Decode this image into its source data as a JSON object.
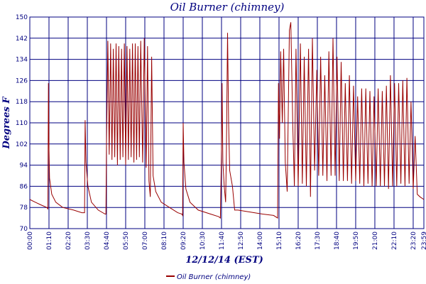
{
  "chart_data": {
    "type": "line",
    "title": "Oil Burner (chimney)",
    "xlabel": "12/12/14 (EST)",
    "ylabel": "Degrees F",
    "ylim": [
      70,
      150
    ],
    "yticks": [
      "70",
      "78",
      "86",
      "94",
      "102",
      "110",
      "118",
      "126",
      "134",
      "142",
      "150"
    ],
    "xlim": [
      "00:00",
      "23:59"
    ],
    "xticks": [
      "00:00",
      "01:10",
      "02:20",
      "03:30",
      "04:40",
      "05:50",
      "07:00",
      "08:10",
      "09:20",
      "10:30",
      "11:40",
      "12:50",
      "14:00",
      "15:10",
      "16:20",
      "17:30",
      "18:40",
      "19:50",
      "21:00",
      "22:10",
      "23:20",
      "23:59"
    ],
    "grid": true,
    "legend_position": "bottom",
    "colors": {
      "series": "#990000",
      "grid": "#000080",
      "text": "#000080"
    },
    "series": [
      {
        "name": "Oil Burner (chimney)",
        "points": [
          [
            "00:00",
            81
          ],
          [
            "00:20",
            80
          ],
          [
            "00:40",
            79
          ],
          [
            "01:02",
            78
          ],
          [
            "01:06",
            77.5
          ],
          [
            "01:08",
            125
          ],
          [
            "01:10",
            100
          ],
          [
            "01:12",
            89
          ],
          [
            "01:20",
            83
          ],
          [
            "01:35",
            80
          ],
          [
            "02:00",
            78
          ],
          [
            "02:40",
            77
          ],
          [
            "03:10",
            76
          ],
          [
            "03:20",
            76
          ],
          [
            "03:22",
            111
          ],
          [
            "03:25",
            95
          ],
          [
            "03:32",
            86
          ],
          [
            "03:45",
            80
          ],
          [
            "04:10",
            77
          ],
          [
            "04:35",
            75.5
          ],
          [
            "04:38",
            75.5
          ],
          [
            "04:40",
            102
          ],
          [
            "04:45",
            141
          ],
          [
            "04:50",
            98
          ],
          [
            "04:55",
            140
          ],
          [
            "05:00",
            96
          ],
          [
            "05:05",
            138
          ],
          [
            "05:10",
            97
          ],
          [
            "05:15",
            140
          ],
          [
            "05:20",
            94
          ],
          [
            "05:25",
            139
          ],
          [
            "05:30",
            96
          ],
          [
            "05:35",
            138
          ],
          [
            "05:40",
            97
          ],
          [
            "05:45",
            140
          ],
          [
            "05:50",
            94
          ],
          [
            "05:55",
            139
          ],
          [
            "06:00",
            96
          ],
          [
            "06:05",
            138
          ],
          [
            "06:10",
            97
          ],
          [
            "06:15",
            140
          ],
          [
            "06:20",
            95
          ],
          [
            "06:25",
            140
          ],
          [
            "06:30",
            96
          ],
          [
            "06:35",
            139
          ],
          [
            "06:40",
            97
          ],
          [
            "06:45",
            141
          ],
          [
            "06:52",
            95
          ],
          [
            "06:58",
            142
          ],
          [
            "07:05",
            93
          ],
          [
            "07:10",
            139
          ],
          [
            "07:15",
            88
          ],
          [
            "07:20",
            82
          ],
          [
            "07:25",
            135
          ],
          [
            "07:30",
            90
          ],
          [
            "07:40",
            84
          ],
          [
            "08:00",
            80
          ],
          [
            "08:30",
            78
          ],
          [
            "09:00",
            76
          ],
          [
            "09:15",
            75.5
          ],
          [
            "09:18",
            75
          ],
          [
            "09:20",
            110
          ],
          [
            "09:23",
            95
          ],
          [
            "09:30",
            85
          ],
          [
            "09:45",
            80
          ],
          [
            "10:15",
            77
          ],
          [
            "11:00",
            75.5
          ],
          [
            "11:30",
            74.5
          ],
          [
            "11:36",
            74
          ],
          [
            "11:40",
            100
          ],
          [
            "11:42",
            125
          ],
          [
            "11:45",
            95
          ],
          [
            "11:50",
            86
          ],
          [
            "11:55",
            80
          ],
          [
            "11:58",
            100
          ],
          [
            "12:02",
            144
          ],
          [
            "12:06",
            110
          ],
          [
            "12:10",
            92
          ],
          [
            "12:20",
            86
          ],
          [
            "12:28",
            77
          ],
          [
            "12:40",
            77
          ],
          [
            "13:10",
            76.5
          ],
          [
            "13:40",
            76
          ],
          [
            "14:10",
            75.5
          ],
          [
            "14:50",
            75
          ],
          [
            "15:05",
            74
          ],
          [
            "15:08",
            125
          ],
          [
            "15:12",
            104
          ],
          [
            "15:16",
            137
          ],
          [
            "15:22",
            110
          ],
          [
            "15:27",
            138
          ],
          [
            "15:33",
            95
          ],
          [
            "15:40",
            84
          ],
          [
            "15:48",
            145
          ],
          [
            "15:53",
            148
          ],
          [
            "16:00",
            110
          ],
          [
            "16:06",
            86
          ],
          [
            "16:12",
            138
          ],
          [
            "16:20",
            86
          ],
          [
            "16:28",
            140
          ],
          [
            "16:35",
            87
          ],
          [
            "16:42",
            135
          ],
          [
            "16:50",
            86
          ],
          [
            "16:58",
            138
          ],
          [
            "17:05",
            82
          ],
          [
            "17:12",
            142
          ],
          [
            "17:20",
            92
          ],
          [
            "17:28",
            130
          ],
          [
            "17:35",
            90
          ],
          [
            "17:42",
            135
          ],
          [
            "17:50",
            90
          ],
          [
            "17:57",
            128
          ],
          [
            "18:05",
            88
          ],
          [
            "18:12",
            137
          ],
          [
            "18:20",
            90
          ],
          [
            "18:27",
            142
          ],
          [
            "18:35",
            90
          ],
          [
            "18:42",
            135
          ],
          [
            "18:50",
            88
          ],
          [
            "18:57",
            133
          ],
          [
            "19:05",
            88
          ],
          [
            "19:12",
            125
          ],
          [
            "19:20",
            88
          ],
          [
            "19:27",
            128
          ],
          [
            "19:35",
            87
          ],
          [
            "19:42",
            124
          ],
          [
            "19:50",
            88
          ],
          [
            "19:57",
            120
          ],
          [
            "20:05",
            87
          ],
          [
            "20:12",
            123
          ],
          [
            "20:20",
            86
          ],
          [
            "20:27",
            123
          ],
          [
            "20:35",
            87
          ],
          [
            "20:42",
            122
          ],
          [
            "20:50",
            86
          ],
          [
            "20:57",
            120
          ],
          [
            "21:05",
            86
          ],
          [
            "21:12",
            123
          ],
          [
            "21:20",
            86
          ],
          [
            "21:27",
            122
          ],
          [
            "21:35",
            86
          ],
          [
            "21:42",
            124
          ],
          [
            "21:50",
            85
          ],
          [
            "21:57",
            128
          ],
          [
            "22:05",
            86
          ],
          [
            "22:12",
            125
          ],
          [
            "22:20",
            86
          ],
          [
            "22:27",
            125
          ],
          [
            "22:35",
            87
          ],
          [
            "22:42",
            126
          ],
          [
            "22:50",
            86
          ],
          [
            "22:57",
            127
          ],
          [
            "23:05",
            87
          ],
          [
            "23:12",
            118
          ],
          [
            "23:20",
            85
          ],
          [
            "23:27",
            105
          ],
          [
            "23:35",
            83
          ],
          [
            "23:45",
            82
          ],
          [
            "23:59",
            81
          ]
        ]
      }
    ]
  }
}
